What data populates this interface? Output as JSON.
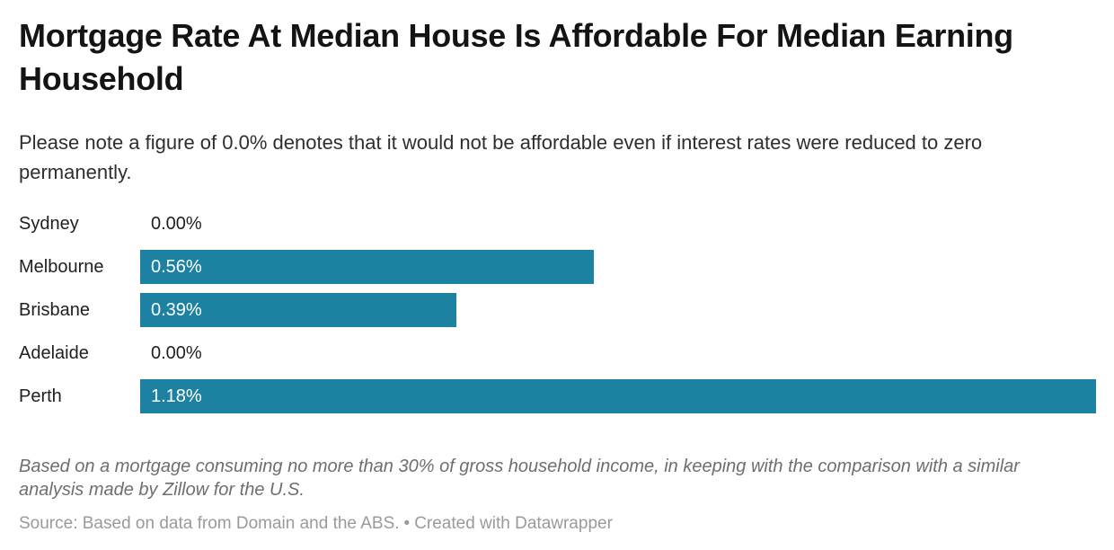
{
  "chart_data": {
    "type": "bar",
    "orientation": "horizontal",
    "title": "Mortgage Rate At Median House Is Affordable For Median Earning Household",
    "subtitle": "Please note a figure of 0.0% denotes that it would not be affordable even if interest rates were reduced to zero permanently.",
    "categories": [
      "Sydney",
      "Melbourne",
      "Brisbane",
      "Adelaide",
      "Perth"
    ],
    "values": [
      0.0,
      0.56,
      0.39,
      0.0,
      1.18
    ],
    "value_labels": [
      "0.00%",
      "0.56%",
      "0.39%",
      "0.00%",
      "1.18%"
    ],
    "xlim": [
      0,
      1.18
    ],
    "grid": false,
    "legend": "none",
    "bar_color": "#1d81a2",
    "zero_value_text_color": "#202020",
    "in_bar_text_color": "#ffffff"
  },
  "footer": {
    "note": "Based on a mortgage consuming no more than 30% of gross household income, in keeping with the comparison with a similar analysis made by Zillow for the U.S.",
    "source_prefix": "Source: Based on data from Domain and the ABS.",
    "separator": "•",
    "created_with": "Created with Datawrapper"
  }
}
